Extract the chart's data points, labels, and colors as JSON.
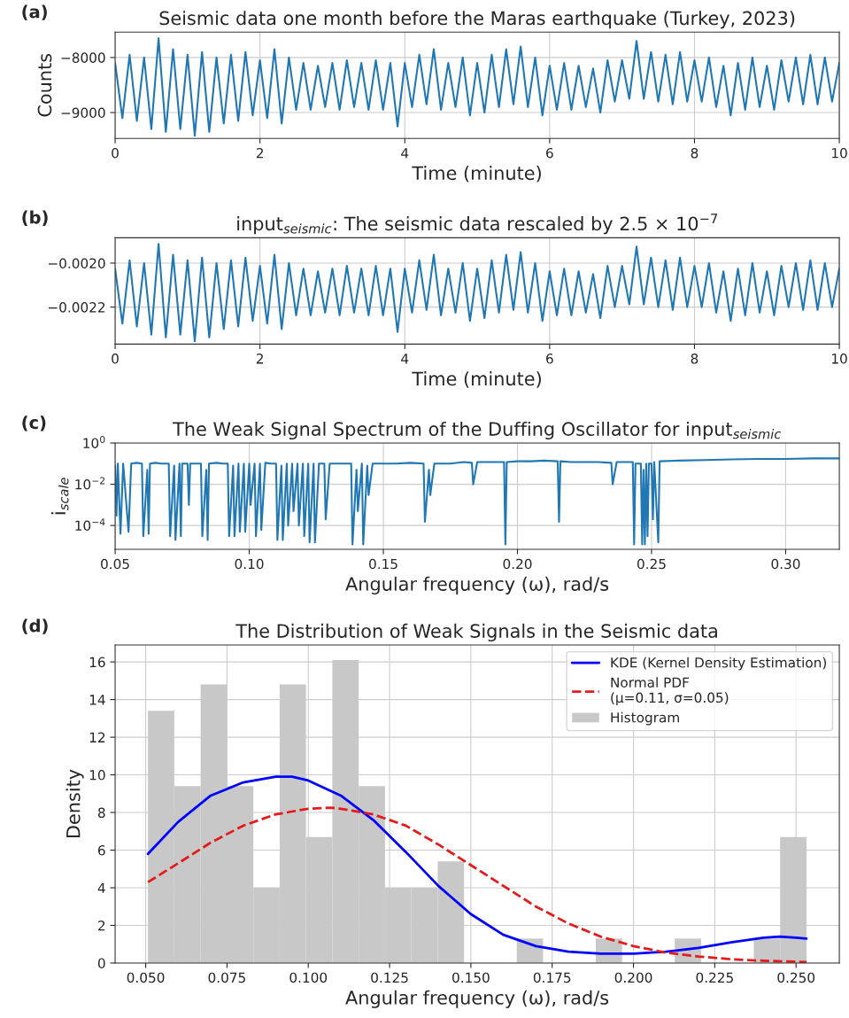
{
  "chart_data": [
    {
      "type": "line",
      "title": "Seismic data one month before the Maras earthquake (Turkey, 2023)",
      "xlabel": "Time (minute)",
      "ylabel": "Counts",
      "annotations": [
        "(a)"
      ],
      "grid": true,
      "x": [
        0,
        0.1,
        0.2,
        0.3,
        0.4,
        0.5,
        0.6,
        0.7,
        0.8,
        0.9,
        1,
        1.1,
        1.2,
        1.3,
        1.4,
        1.5,
        1.6,
        1.7,
        1.8,
        1.9,
        2,
        2.1,
        2.2,
        2.3,
        2.4,
        2.5,
        2.6,
        2.7,
        2.8,
        2.9,
        3,
        3.1,
        3.2,
        3.3,
        3.4,
        3.5,
        3.6,
        3.7,
        3.8,
        3.9,
        4,
        4.1,
        4.2,
        4.3,
        4.4,
        4.5,
        4.6,
        4.7,
        4.8,
        4.9,
        5,
        5.1,
        5.2,
        5.3,
        5.4,
        5.5,
        5.6,
        5.7,
        5.8,
        5.9,
        6,
        6.1,
        6.2,
        6.3,
        6.4,
        6.5,
        6.6,
        6.7,
        6.8,
        6.9,
        7,
        7.1,
        7.2,
        7.3,
        7.4,
        7.5,
        7.6,
        7.7,
        7.8,
        7.9,
        8,
        8.1,
        8.2,
        8.3,
        8.4,
        8.5,
        8.6,
        8.7,
        8.8,
        8.9,
        9,
        9.1,
        9.2,
        9.3,
        9.4,
        9.5,
        9.6,
        9.7,
        9.8,
        9.9,
        10
      ],
      "series": [
        {
          "color": "#1f77b4",
          "values": [
            -8100,
            -9100,
            -7950,
            -9150,
            -8000,
            -9300,
            -7650,
            -9350,
            -7850,
            -9300,
            -7950,
            -9420,
            -7900,
            -9350,
            -8000,
            -9200,
            -7950,
            -9150,
            -7900,
            -9050,
            -8050,
            -9100,
            -7850,
            -9200,
            -8000,
            -8950,
            -8100,
            -8950,
            -8150,
            -8900,
            -8100,
            -8950,
            -8050,
            -8900,
            -8100,
            -8950,
            -8050,
            -8950,
            -8100,
            -9250,
            -8100,
            -8900,
            -7950,
            -8850,
            -7850,
            -8950,
            -8100,
            -8900,
            -8000,
            -9050,
            -8100,
            -9000,
            -7950,
            -8900,
            -7850,
            -8850,
            -7800,
            -8900,
            -8000,
            -9050,
            -8150,
            -8950,
            -8100,
            -8950,
            -8150,
            -8900,
            -8200,
            -9000,
            -8050,
            -8800,
            -8050,
            -8750,
            -7700,
            -8750,
            -7900,
            -8800,
            -7950,
            -8850,
            -7900,
            -8800,
            -8050,
            -8800,
            -8000,
            -8900,
            -8150,
            -9050,
            -8100,
            -8950,
            -8000,
            -8900,
            -8150,
            -8950,
            -8050,
            -8800,
            -8000,
            -8850,
            -7950,
            -8850,
            -8000,
            -8800,
            -8100
          ]
        }
      ],
      "xlim": [
        0,
        10
      ],
      "xticks": [
        0,
        2,
        4,
        6,
        8,
        10
      ],
      "ylim": [
        -9470,
        -7540
      ],
      "yticks": [
        {
          "value": -9000,
          "label": "−9000"
        },
        {
          "value": -8000,
          "label": "−8000"
        }
      ]
    },
    {
      "type": "line",
      "title": "input$_{seismic}$: The seismic data rescaled by 2.5 × 10$^{−7}$",
      "xlabel": "Time (minute)",
      "annotations": [
        "(b)"
      ],
      "grid": true,
      "x": [
        0,
        0.1,
        0.2,
        0.3,
        0.4,
        0.5,
        0.6,
        0.7,
        0.8,
        0.9,
        1,
        1.1,
        1.2,
        1.3,
        1.4,
        1.5,
        1.6,
        1.7,
        1.8,
        1.9,
        2,
        2.1,
        2.2,
        2.3,
        2.4,
        2.5,
        2.6,
        2.7,
        2.8,
        2.9,
        3,
        3.1,
        3.2,
        3.3,
        3.4,
        3.5,
        3.6,
        3.7,
        3.8,
        3.9,
        4,
        4.1,
        4.2,
        4.3,
        4.4,
        4.5,
        4.6,
        4.7,
        4.8,
        4.9,
        5,
        5.1,
        5.2,
        5.3,
        5.4,
        5.5,
        5.6,
        5.7,
        5.8,
        5.9,
        6,
        6.1,
        6.2,
        6.3,
        6.4,
        6.5,
        6.6,
        6.7,
        6.8,
        6.9,
        7,
        7.1,
        7.2,
        7.3,
        7.4,
        7.5,
        7.6,
        7.7,
        7.8,
        7.9,
        8,
        8.1,
        8.2,
        8.3,
        8.4,
        8.5,
        8.6,
        8.7,
        8.8,
        8.9,
        9,
        9.1,
        9.2,
        9.3,
        9.4,
        9.5,
        9.6,
        9.7,
        9.8,
        9.9,
        10
      ],
      "series": [
        {
          "color": "#1f77b4",
          "values": [
            -0.002025,
            -0.002275,
            -0.0019875,
            -0.0022875,
            -0.002,
            -0.002325,
            -0.0019125,
            -0.0023375,
            -0.0019625,
            -0.002325,
            -0.0019875,
            -0.002355,
            -0.001975,
            -0.0023375,
            -0.002,
            -0.0023,
            -0.0019875,
            -0.0022875,
            -0.001975,
            -0.0022625,
            -0.0020125,
            -0.002275,
            -0.0019625,
            -0.0023,
            -0.002,
            -0.0022375,
            -0.002025,
            -0.0022375,
            -0.0020375,
            -0.002225,
            -0.002025,
            -0.0022375,
            -0.0020125,
            -0.002225,
            -0.002025,
            -0.0022375,
            -0.0020125,
            -0.0022375,
            -0.002025,
            -0.0023125,
            -0.002025,
            -0.002225,
            -0.0019875,
            -0.0022125,
            -0.0019625,
            -0.0022375,
            -0.002025,
            -0.002225,
            -0.002,
            -0.0022625,
            -0.002025,
            -0.00225,
            -0.0019875,
            -0.002225,
            -0.0019625,
            -0.0022125,
            -0.00195,
            -0.002225,
            -0.002,
            -0.0022625,
            -0.0020375,
            -0.0022375,
            -0.002025,
            -0.0022375,
            -0.0020375,
            -0.002225,
            -0.00205,
            -0.00225,
            -0.0020125,
            -0.0022,
            -0.0020125,
            -0.0021875,
            -0.001925,
            -0.0021875,
            -0.001975,
            -0.0022,
            -0.0019875,
            -0.0022125,
            -0.001975,
            -0.0022,
            -0.0020125,
            -0.0022,
            -0.002,
            -0.002225,
            -0.0020375,
            -0.0022625,
            -0.002025,
            -0.0022375,
            -0.002,
            -0.002225,
            -0.0020375,
            -0.0022375,
            -0.0020125,
            -0.0022,
            -0.002,
            -0.0022125,
            -0.0019875,
            -0.0022125,
            -0.002,
            -0.0022,
            -0.002025
          ]
        }
      ],
      "xlim": [
        0,
        10
      ],
      "xticks": [
        0,
        2,
        4,
        6,
        8,
        10
      ],
      "ylim": [
        -0.002368,
        -0.001885
      ],
      "yticks": [
        {
          "value": -0.0022,
          "label": "−0.0022"
        },
        {
          "value": -0.002,
          "label": "−0.0020"
        }
      ]
    },
    {
      "type": "line",
      "title": "The Weak Signal Spectrum of the Duffing Oscillator for input$_{seismic}$",
      "xlabel": "Angular frequency (ω), rad/s",
      "ylabel": "i$_{scale}$",
      "annotations": [
        "(c)"
      ],
      "grid": true,
      "log": "y",
      "x": [
        0.05,
        0.0505,
        0.051,
        0.052,
        0.053,
        0.055,
        0.056,
        0.058,
        0.06,
        0.0605,
        0.062,
        0.0625,
        0.063,
        0.065,
        0.067,
        0.07,
        0.0705,
        0.072,
        0.0725,
        0.074,
        0.0745,
        0.075,
        0.077,
        0.0775,
        0.078,
        0.08,
        0.082,
        0.0825,
        0.084,
        0.0845,
        0.085,
        0.088,
        0.09,
        0.092,
        0.0925,
        0.094,
        0.0945,
        0.096,
        0.0965,
        0.098,
        0.0985,
        0.1,
        0.1005,
        0.102,
        0.1025,
        0.104,
        0.1045,
        0.106,
        0.108,
        0.11,
        0.1105,
        0.112,
        0.1125,
        0.114,
        0.1145,
        0.116,
        0.1165,
        0.118,
        0.1185,
        0.12,
        0.1205,
        0.122,
        0.1225,
        0.124,
        0.1245,
        0.126,
        0.128,
        0.1285,
        0.13,
        0.135,
        0.138,
        0.1385,
        0.14,
        0.1405,
        0.142,
        0.1425,
        0.144,
        0.1445,
        0.146,
        0.15,
        0.155,
        0.16,
        0.165,
        0.1655,
        0.167,
        0.1675,
        0.169,
        0.175,
        0.18,
        0.183,
        0.1835,
        0.185,
        0.19,
        0.195,
        0.1955,
        0.196,
        0.2,
        0.205,
        0.21,
        0.215,
        0.2155,
        0.216,
        0.22,
        0.225,
        0.23,
        0.235,
        0.2355,
        0.237,
        0.24,
        0.243,
        0.2435,
        0.244,
        0.246,
        0.2465,
        0.247,
        0.2475,
        0.248,
        0.2485,
        0.249,
        0.25,
        0.2505,
        0.251,
        0.2525,
        0.253,
        0.26,
        0.27,
        0.28,
        0.29,
        0.3,
        0.31,
        0.32
      ],
      "series": [
        {
          "color": "#1f77b4",
          "values": [
            0.08,
            0.0003,
            0.1,
            4e-05,
            0.1,
            5e-05,
            0.1,
            0.11,
            0.1,
            3e-05,
            0.05,
            4e-05,
            0.1,
            0.11,
            0.1,
            0.1,
            3e-05,
            0.08,
            2e-05,
            0.1,
            3e-05,
            0.1,
            0.1,
            0.001,
            0.1,
            0.1,
            0.1,
            3e-05,
            0.05,
            2e-05,
            0.1,
            0.11,
            0.1,
            0.1,
            3e-05,
            0.08,
            3e-05,
            0.1,
            5e-05,
            0.1,
            5e-05,
            0.1,
            0.001,
            0.1,
            3e-05,
            0.1,
            6e-05,
            0.11,
            0.1,
            0.1,
            2e-05,
            0.08,
            2e-05,
            0.1,
            0.0001,
            0.1,
            0.0005,
            0.1,
            0.0001,
            0.1,
            3e-05,
            0.1,
            1.5e-05,
            0.1,
            1.5e-05,
            0.1,
            0.1,
            0.0002,
            0.1,
            0.1,
            0.1,
            1.2e-05,
            0.05,
            0.0005,
            0.1,
            1.2e-05,
            0.08,
            0.003,
            0.1,
            0.1,
            0.1,
            0.11,
            0.1,
            0.00015,
            0.05,
            0.003,
            0.1,
            0.1,
            0.12,
            0.11,
            0.01,
            0.12,
            0.12,
            0.12,
            1.2e-05,
            0.12,
            0.13,
            0.13,
            0.14,
            0.13,
            0.00015,
            0.13,
            0.12,
            0.12,
            0.12,
            0.11,
            0.01,
            0.12,
            0.12,
            0.12,
            1.2e-05,
            0.1,
            0.1,
            1.2e-05,
            0.05,
            1.2e-05,
            0.1,
            3e-05,
            0.1,
            0.1,
            0.0002,
            0.12,
            1.5e-05,
            0.13,
            0.14,
            0.15,
            0.16,
            0.17,
            0.17,
            0.18,
            0.18
          ]
        }
      ],
      "xlim": [
        0.05,
        0.32
      ],
      "xticks": [
        {
          "value": 0.05,
          "label": "0.05"
        },
        {
          "value": 0.1,
          "label": "0.10"
        },
        {
          "value": 0.15,
          "label": "0.15"
        },
        {
          "value": 0.2,
          "label": "0.20"
        },
        {
          "value": 0.25,
          "label": "0.25"
        },
        {
          "value": 0.3,
          "label": "0.30"
        }
      ],
      "ylim": [
        7e-06,
        1
      ],
      "yticks": [
        {
          "value": 0.0001,
          "label": "10$^{−4}$"
        },
        {
          "value": 0.01,
          "label": "10$^{−2}$"
        },
        {
          "value": 1,
          "label": "10$^{0}$"
        }
      ]
    },
    {
      "type": "histogram",
      "title": "The Distribution of Weak Signals in the Seismic data",
      "xlabel": "Angular frequency (ω), rad/s",
      "ylabel": "Density",
      "annotations": [
        "(d)"
      ],
      "grid": true,
      "legend": "top right",
      "bins": [
        0.0507,
        0.0588,
        0.0669,
        0.075,
        0.0831,
        0.0912,
        0.0993,
        0.1074,
        0.1155,
        0.1236,
        0.1317,
        0.1398,
        0.1479,
        0.156,
        0.1641,
        0.1722,
        0.1803,
        0.1884,
        0.1965,
        0.2046,
        0.2127,
        0.2208,
        0.2289,
        0.237,
        0.2451,
        0.2532
      ],
      "series": [
        {
          "name": "Histogram",
          "type": "histogram",
          "color": "#c8c8c8",
          "values": [
            13.4,
            9.4,
            14.8,
            9.4,
            4.0,
            14.8,
            6.7,
            16.1,
            9.4,
            4.0,
            4.0,
            5.4,
            0,
            0,
            1.3,
            0,
            0,
            1.3,
            0,
            0,
            1.3,
            0,
            0,
            1.3,
            6.7
          ]
        },
        {
          "name": "KDE (Kernel Density Estimation)",
          "type": "line",
          "color": "#0000ff",
          "line_style": "solid",
          "x": [
            0.0507,
            0.06,
            0.07,
            0.08,
            0.09,
            0.095,
            0.1,
            0.11,
            0.12,
            0.13,
            0.14,
            0.15,
            0.16,
            0.17,
            0.18,
            0.19,
            0.2,
            0.21,
            0.22,
            0.23,
            0.24,
            0.245,
            0.25,
            0.2532
          ],
          "values": [
            5.8,
            7.5,
            8.9,
            9.6,
            9.9,
            9.9,
            9.7,
            8.9,
            7.6,
            5.9,
            4.1,
            2.6,
            1.5,
            0.9,
            0.6,
            0.5,
            0.5,
            0.6,
            0.8,
            1.1,
            1.35,
            1.4,
            1.35,
            1.3
          ]
        },
        {
          "name": "Normal PDF\n(μ=0.11, σ=0.05)",
          "type": "line",
          "color": "#e41a1c",
          "line_style": "dashed",
          "x": [
            0.0507,
            0.06,
            0.07,
            0.08,
            0.09,
            0.1,
            0.107,
            0.11,
            0.12,
            0.13,
            0.14,
            0.15,
            0.16,
            0.17,
            0.18,
            0.19,
            0.2,
            0.21,
            0.22,
            0.23,
            0.24,
            0.2532
          ],
          "values": [
            4.3,
            5.3,
            6.4,
            7.3,
            7.9,
            8.2,
            8.25,
            8.2,
            7.9,
            7.3,
            6.3,
            5.2,
            4.1,
            3.0,
            2.1,
            1.4,
            0.9,
            0.55,
            0.35,
            0.2,
            0.12,
            0.05
          ]
        }
      ],
      "xlim": [
        0.0406,
        0.2633
      ],
      "xticks": [
        {
          "value": 0.05,
          "label": "0.050"
        },
        {
          "value": 0.075,
          "label": "0.075"
        },
        {
          "value": 0.1,
          "label": "0.100"
        },
        {
          "value": 0.125,
          "label": "0.125"
        },
        {
          "value": 0.15,
          "label": "0.150"
        },
        {
          "value": 0.175,
          "label": "0.175"
        },
        {
          "value": 0.2,
          "label": "0.200"
        },
        {
          "value": 0.225,
          "label": "0.225"
        },
        {
          "value": 0.25,
          "label": "0.250"
        }
      ],
      "ylim": [
        0,
        16.9
      ],
      "yticks": [
        0,
        2,
        4,
        6,
        8,
        10,
        12,
        14,
        16
      ]
    }
  ]
}
